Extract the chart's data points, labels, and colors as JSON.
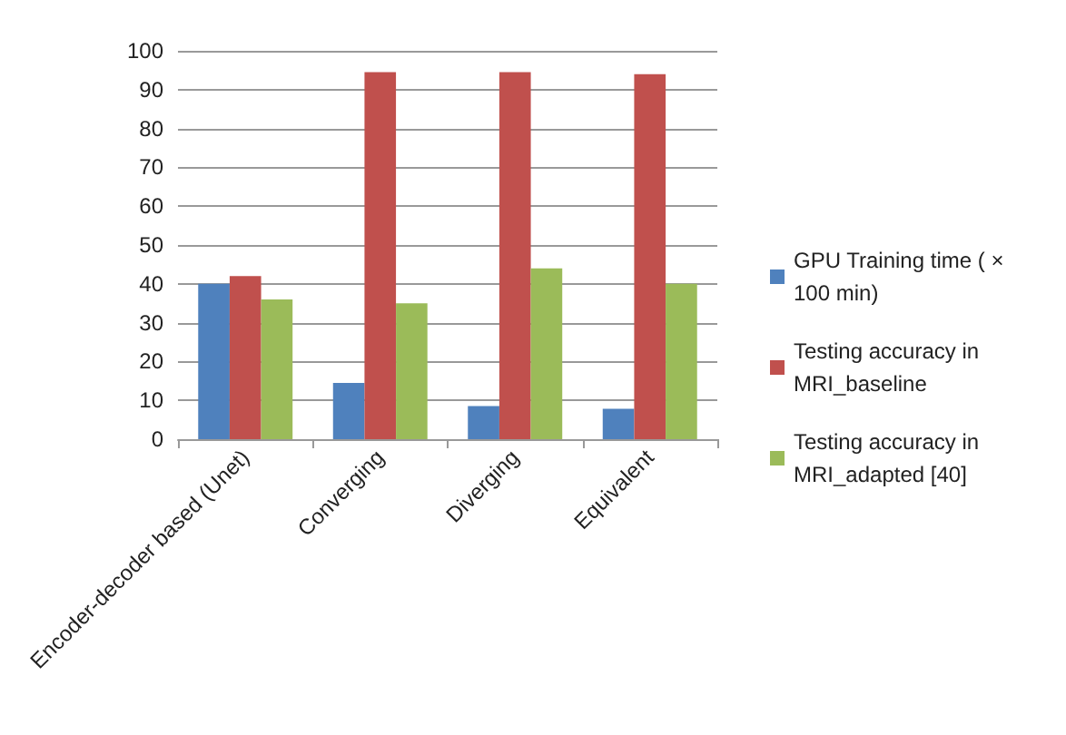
{
  "chart_data": {
    "type": "bar",
    "categories": [
      "Encoder-decoder based (Unet)",
      "Converging",
      "Diverging",
      "Equivalent"
    ],
    "series": [
      {
        "name": "GPU Training time ( × 100 min)",
        "color": "#4f81bd",
        "values": [
          40,
          14.5,
          8.5,
          7.8
        ]
      },
      {
        "name": "Testing accuracy in MRI_baseline",
        "color": "#c0504d",
        "values": [
          42,
          94.5,
          94.5,
          94
        ]
      },
      {
        "name": "Testing accuracy in MRI_adapted [40]",
        "color": "#9bbb59",
        "values": [
          36,
          35,
          44,
          40
        ]
      }
    ],
    "ylim": [
      0,
      100
    ],
    "yticks": [
      0,
      10,
      20,
      30,
      40,
      50,
      60,
      70,
      80,
      90,
      100
    ],
    "grid": "y",
    "legend": "right"
  }
}
